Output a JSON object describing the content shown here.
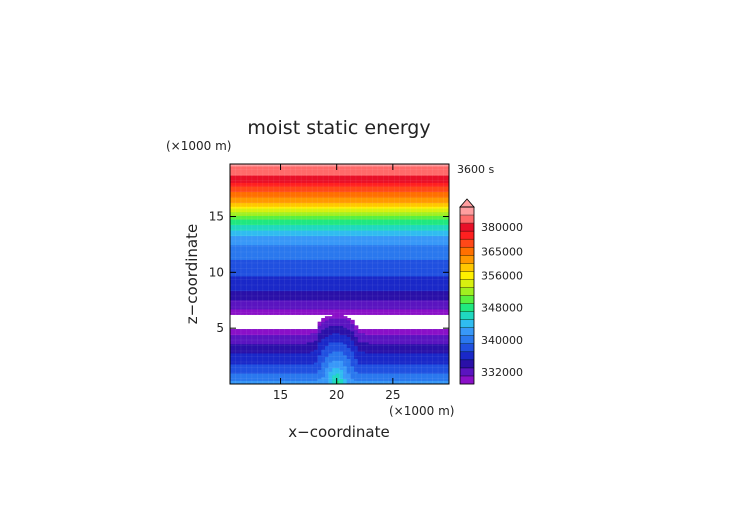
{
  "chart_data": {
    "type": "heatmap",
    "title": "moist static energy",
    "xlabel": "x−coordinate",
    "ylabel": "z−coordinate",
    "x_unit": "(×1000 m)",
    "y_unit": "(×1000 m)",
    "time_label": "3600 s",
    "x_range": [
      10.5,
      30
    ],
    "y_range": [
      0,
      19.7
    ],
    "x_ticks": [
      15,
      20,
      25
    ],
    "y_ticks": [
      5,
      10,
      15
    ],
    "colorbar": {
      "levels": [
        330000,
        332000,
        334000,
        336000,
        338000,
        340000,
        342000,
        344000,
        346000,
        348000,
        350000,
        352000,
        354000,
        356000,
        358000,
        360000,
        365000,
        370000,
        375000,
        380000,
        385000,
        390000
      ],
      "labeled": [
        "332000",
        "340000",
        "348000",
        "356000",
        "365000",
        "380000"
      ],
      "colors": [
        "#8a10c8",
        "#5a14c0",
        "#2a10a8",
        "#1a28c8",
        "#2050e0",
        "#2a78ee",
        "#3898f8",
        "#30bcf0",
        "#20d8c0",
        "#20e880",
        "#58f040",
        "#a0f020",
        "#d8f010",
        "#fff000",
        "#ffc800",
        "#ff9800",
        "#ff7000",
        "#ff4818",
        "#ff2020",
        "#e81028",
        "#ff6a6a",
        "#ff9ea0"
      ],
      "extend_top": true
    },
    "fields": {
      "upper_layer_z_range": [
        6.3,
        19.7
      ],
      "upper_layer_profile": [
        {
          "z": 6.3,
          "value": 331000
        },
        {
          "z": 7.0,
          "value": 332500
        },
        {
          "z": 8.5,
          "value": 336500
        },
        {
          "z": 10.0,
          "value": 338500
        },
        {
          "z": 11.5,
          "value": 340500
        },
        {
          "z": 13.0,
          "value": 343000
        },
        {
          "z": 14.5,
          "value": 348500
        },
        {
          "z": 15.5,
          "value": 354000
        },
        {
          "z": 16.5,
          "value": 362000
        },
        {
          "z": 17.5,
          "value": 372000
        },
        {
          "z": 18.3,
          "value": 382000
        },
        {
          "z": 19.0,
          "value": 387000
        },
        {
          "z": 19.7,
          "value": 391000
        }
      ],
      "missing_band_z": [
        4.85,
        6.3
      ],
      "lower_layer_top_z": 4.85,
      "lower_layer_profile": [
        {
          "z": 0.0,
          "value": 343000
        },
        {
          "z": 0.5,
          "value": 341500
        },
        {
          "z": 1.0,
          "value": 340000
        },
        {
          "z": 1.5,
          "value": 338500
        },
        {
          "z": 2.2,
          "value": 337000
        },
        {
          "z": 3.0,
          "value": 335500
        },
        {
          "z": 3.8,
          "value": 333500
        },
        {
          "z": 4.4,
          "value": 332000
        },
        {
          "z": 4.85,
          "value": 331000
        }
      ],
      "thermal": {
        "x_center": 20,
        "z_top": 6.2,
        "halfwidth": 1.8
      }
    }
  }
}
